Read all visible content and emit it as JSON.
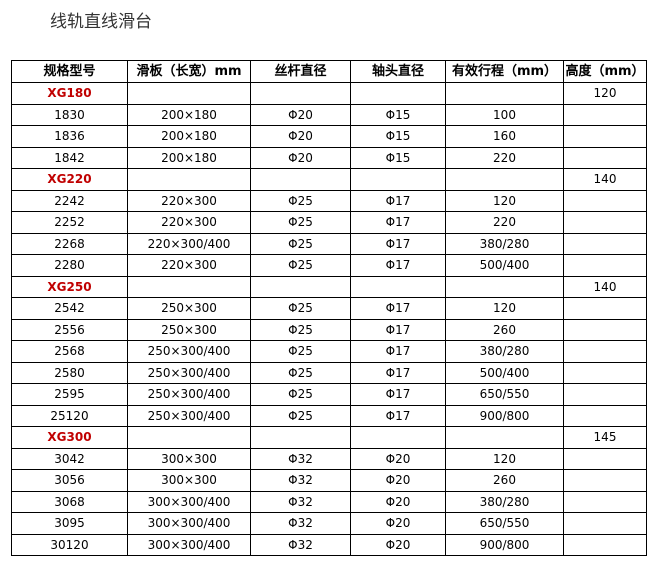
{
  "title": "线轨直线滑台",
  "headers": [
    "规格型号",
    "滑板（长宽）mm",
    "丝杆直径",
    "轴头直径",
    "有效行程（mm）",
    "高度（mm）"
  ],
  "rows": [
    {
      "group": true,
      "cells": [
        "XG180",
        "",
        "",
        "",
        "",
        "120"
      ]
    },
    {
      "cells": [
        "1830",
        "200×180",
        "Φ20",
        "Φ15",
        "100",
        ""
      ]
    },
    {
      "cells": [
        "1836",
        "200×180",
        "Φ20",
        "Φ15",
        "160",
        ""
      ]
    },
    {
      "cells": [
        "1842",
        "200×180",
        "Φ20",
        "Φ15",
        "220",
        ""
      ]
    },
    {
      "group": true,
      "cells": [
        "XG220",
        "",
        "",
        "",
        "",
        "140"
      ]
    },
    {
      "cells": [
        "2242",
        "220×300",
        "Φ25",
        "Φ17",
        "120",
        ""
      ]
    },
    {
      "cells": [
        "2252",
        "220×300",
        "Φ25",
        "Φ17",
        "220",
        ""
      ]
    },
    {
      "cells": [
        "2268",
        "220×300/400",
        "Φ25",
        "Φ17",
        "380/280",
        ""
      ]
    },
    {
      "cells": [
        "2280",
        "220×300",
        "Φ25",
        "Φ17",
        "500/400",
        ""
      ]
    },
    {
      "group": true,
      "cells": [
        "XG250",
        "",
        "",
        "",
        "",
        "140"
      ]
    },
    {
      "cells": [
        "2542",
        "250×300",
        "Φ25",
        "Φ17",
        "120",
        ""
      ]
    },
    {
      "cells": [
        "2556",
        "250×300",
        "Φ25",
        "Φ17",
        "260",
        ""
      ]
    },
    {
      "cells": [
        "2568",
        "250×300/400",
        "Φ25",
        "Φ17",
        "380/280",
        ""
      ]
    },
    {
      "cells": [
        "2580",
        "250×300/400",
        "Φ25",
        "Φ17",
        "500/400",
        ""
      ]
    },
    {
      "cells": [
        "2595",
        "250×300/400",
        "Φ25",
        "Φ17",
        "650/550",
        ""
      ]
    },
    {
      "cells": [
        "25120",
        "250×300/400",
        "Φ25",
        "Φ17",
        "900/800",
        ""
      ]
    },
    {
      "group": true,
      "cells": [
        "XG300",
        "",
        "",
        "",
        "",
        "145"
      ]
    },
    {
      "cells": [
        "3042",
        "300×300",
        "Φ32",
        "Φ20",
        "120",
        ""
      ]
    },
    {
      "cells": [
        "3056",
        "300×300",
        "Φ32",
        "Φ20",
        "260",
        ""
      ]
    },
    {
      "cells": [
        "3068",
        "300×300/400",
        "Φ32",
        "Φ20",
        "380/280",
        ""
      ]
    },
    {
      "cells": [
        "3095",
        "300×300/400",
        "Φ32",
        "Φ20",
        "650/550",
        ""
      ]
    },
    {
      "cells": [
        "30120",
        "300×300/400",
        "Φ32",
        "Φ20",
        "900/800",
        ""
      ]
    }
  ],
  "colors": {
    "group_label": "#c00000"
  }
}
